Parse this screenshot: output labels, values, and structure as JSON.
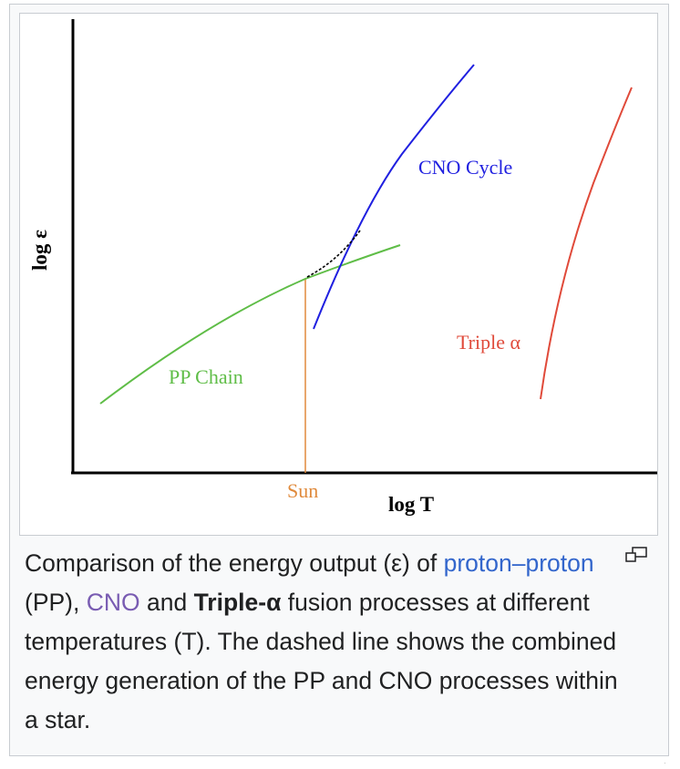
{
  "diagram": {
    "y_axis_label": "log ε",
    "x_axis_label": "log T",
    "curves": {
      "pp": {
        "label": "PP Chain",
        "color": "#5fbd47"
      },
      "cno": {
        "label": "CNO Cycle",
        "color": "#2020e0"
      },
      "triple_alpha": {
        "label": "Triple α",
        "color": "#e04a3a"
      }
    },
    "sun_label": "Sun",
    "sun_color": "#e08a3c",
    "combined_line": "dashed"
  },
  "caption": {
    "part1": "Comparison of the energy output (ε) of ",
    "link_proton": "proton–proton",
    "part2": " (PP), ",
    "link_cno": "CNO",
    "part3": " and ",
    "bold_triple": "Triple-α",
    "part4": " fusion processes at different temperatures (T). The dashed line shows the combined energy generation of the PP and CNO processes within a star."
  },
  "icons": {
    "magnify": "magnify-clip-icon"
  }
}
